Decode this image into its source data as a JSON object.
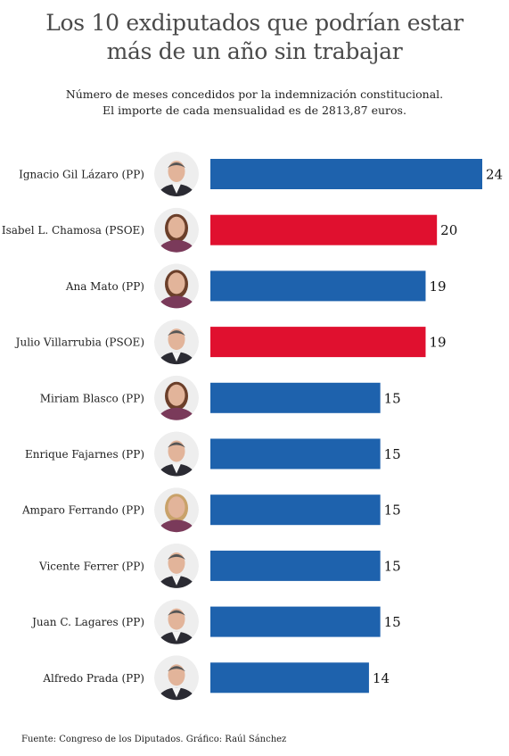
{
  "title_lines": [
    "Los 10 exdiputados que podrían estar",
    "más de un año sin trabajar"
  ],
  "subtitle_lines": [
    "Número de meses concedidos por la indemnización constitucional.",
    "El importe de cada mensualidad es de 2813,87 euros."
  ],
  "source": "Fuente: Congreso de los Diputados. Gráfico: Raúl Sánchez",
  "colors": {
    "PP": "#1e62ad",
    "PSOE": "#e0102f",
    "label": "#222222",
    "value": "#111111"
  },
  "chart_data": {
    "type": "bar",
    "orientation": "horizontal",
    "categories": [
      "Ignacio Gil Lázaro (PP)",
      "Isabel L. Chamosa (PSOE)",
      "Ana Mato (PP)",
      "Julio Villarrubia (PSOE)",
      "Miriam Blasco (PP)",
      "Enrique Fajarnes (PP)",
      "Amparo Ferrando (PP)",
      "Vicente Ferrer (PP)",
      "Juan C. Lagares (PP)",
      "Alfredo Prada (PP)"
    ],
    "values": [
      24,
      20,
      19,
      19,
      15,
      15,
      15,
      15,
      15,
      14
    ],
    "parties": [
      "PP",
      "PSOE",
      "PP",
      "PSOE",
      "PP",
      "PP",
      "PP",
      "PP",
      "PP",
      "PP"
    ],
    "photo_icons": [
      "man-suit-portrait",
      "woman-glasses-portrait",
      "woman-portrait",
      "man-suit-portrait",
      "woman-portrait",
      "man-glasses-portrait",
      "woman-blonde-portrait",
      "man-mustache-portrait",
      "man-suit-portrait",
      "man-portrait"
    ],
    "xlim": [
      0,
      24
    ],
    "grid": false,
    "legend": "none"
  }
}
